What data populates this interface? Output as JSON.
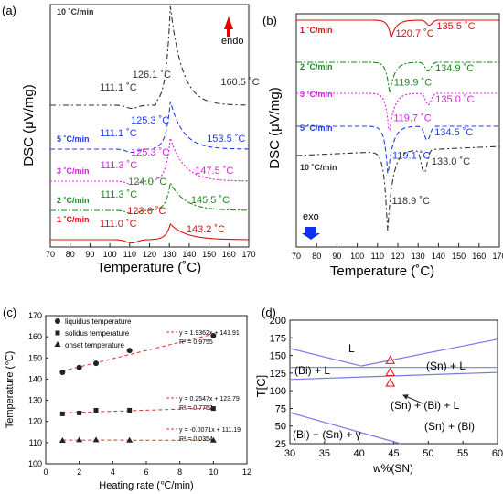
{
  "panels": {
    "a": {
      "letter": "(a)",
      "ylabel": "DSC (μV/mg)",
      "xlabel": "Temperature (˚C)",
      "xticks": [
        "70",
        "80",
        "90",
        "100",
        "110",
        "120",
        "130",
        "140",
        "150",
        "160",
        "170"
      ],
      "endo_label": "endo",
      "rates": [
        {
          "label": "10 ˚C/min",
          "color": "#333333",
          "ann": [
            "111.1 ˚C",
            "126.1 ˚C",
            "160.5 ˚C"
          ]
        },
        {
          "label": "5 ˚C/min",
          "color": "#1f3fe6",
          "ann": [
            "111.1 ˚C",
            "125.3 ˚C",
            "153.5 ˚C"
          ]
        },
        {
          "label": "3 ˚C/min",
          "color": "#e020e0",
          "ann": [
            "111.3 ˚C",
            "125.3 ˚C",
            "147.5 ˚C"
          ]
        },
        {
          "label": "2 ˚C/min",
          "color": "#1e8a1e",
          "ann": [
            "111.3 ˚C",
            "124.0 ˚C",
            "145.5 ˚C"
          ]
        },
        {
          "label": "1 ˚C/min",
          "color": "#e01010",
          "ann": [
            "111.0 ˚C",
            "123.6 ˚C",
            "143.2 ˚C"
          ]
        }
      ]
    },
    "b": {
      "letter": "(b)",
      "ylabel": "DSC (μV/mg)",
      "xlabel": "Temperature (˚C)",
      "xticks": [
        "70",
        "80",
        "90",
        "100",
        "110",
        "120",
        "130",
        "140",
        "150",
        "160",
        "170"
      ],
      "exo_label": "exo",
      "rates": [
        {
          "label": "1 ˚C/min",
          "color": "#e01010",
          "ann": [
            "120.7 ˚C",
            "135.5 ˚C"
          ]
        },
        {
          "label": "2 ˚C/min",
          "color": "#1e8a1e",
          "ann": [
            "119.9 ˚C",
            "134.9 ˚C"
          ]
        },
        {
          "label": "3 ˚C/min",
          "color": "#e020e0",
          "ann": [
            "119.7 ˚C",
            "135.0 ˚C"
          ]
        },
        {
          "label": "5 ˚C/min",
          "color": "#1f3fe6",
          "ann": [
            "119.1 ˚C",
            "134.5 ˚C"
          ]
        },
        {
          "label": "10 ˚C/min",
          "color": "#333333",
          "ann": [
            "118.9 ˚C",
            "133.0 ˚C"
          ]
        }
      ]
    },
    "c": {
      "letter": "(c)",
      "ylabel": "Temperature (℃)",
      "xlabel": "Heating rate (℃/min)",
      "legend": [
        "liquidus temperature",
        "solidus  temperature",
        "onset  temperature"
      ],
      "fits": [
        {
          "eq": "y = 1.9362x + 141.91",
          "r2": "R² = 0.9755"
        },
        {
          "eq": "y = 0.2547x + 123.79",
          "r2": "R² = 0.7752"
        },
        {
          "eq": "y = -0.0071x + 111.19",
          "r2": "R² = 0.0354"
        }
      ],
      "xticks": [
        "0",
        "2",
        "4",
        "6",
        "8",
        "10",
        "12"
      ],
      "yticks": [
        "100",
        "110",
        "120",
        "130",
        "140",
        "150",
        "160",
        "170"
      ]
    },
    "d": {
      "letter": "(d)",
      "ylabel": "T[C]",
      "xlabel": "w%(SN)",
      "regions": [
        "L",
        "(Bi) + L",
        "(Sn) + L",
        "(Sn) + (Bi) + L",
        "(Sn) + (Bi)",
        "(Bi) + (Sn) + γ"
      ],
      "xticks": [
        "30",
        "35",
        "40",
        "45",
        "50",
        "55",
        "60"
      ],
      "yticks": [
        "25",
        "50",
        "75",
        "100",
        "125",
        "150",
        "175",
        "200"
      ]
    }
  },
  "chart_data": [
    {
      "type": "line",
      "title": "",
      "xlabel": "Temperature (˚C)",
      "ylabel": "DSC (μV/mg)",
      "xlim": [
        70,
        170
      ],
      "series": [
        {
          "name": "10 ˚C/min",
          "peaks": [
            111.1,
            126.1,
            160.5
          ]
        },
        {
          "name": "5 ˚C/min",
          "peaks": [
            111.1,
            125.3,
            153.5
          ]
        },
        {
          "name": "3 ˚C/min",
          "peaks": [
            111.3,
            125.3,
            147.5
          ]
        },
        {
          "name": "2 ˚C/min",
          "peaks": [
            111.3,
            124.0,
            145.5
          ]
        },
        {
          "name": "1 ˚C/min",
          "peaks": [
            111.0,
            123.6,
            143.2
          ]
        }
      ]
    },
    {
      "type": "line",
      "title": "",
      "xlabel": "Temperature (˚C)",
      "ylabel": "DSC (μV/mg)",
      "xlim": [
        70,
        170
      ],
      "series": [
        {
          "name": "1 ˚C/min",
          "peaks": [
            120.7,
            135.5
          ]
        },
        {
          "name": "2 ˚C/min",
          "peaks": [
            119.9,
            134.9
          ]
        },
        {
          "name": "3 ˚C/min",
          "peaks": [
            119.7,
            135.0
          ]
        },
        {
          "name": "5 ˚C/min",
          "peaks": [
            119.1,
            134.5
          ]
        },
        {
          "name": "10 ˚C/min",
          "peaks": [
            118.9,
            133.0
          ]
        }
      ]
    },
    {
      "type": "scatter",
      "title": "",
      "xlabel": "Heating rate (℃/min)",
      "ylabel": "Temperature (℃)",
      "xlim": [
        0,
        12
      ],
      "ylim": [
        100,
        170
      ],
      "x": [
        1,
        2,
        3,
        5,
        10
      ],
      "series": [
        {
          "name": "liquidus temperature",
          "values": [
            143.2,
            145.5,
            147.5,
            153.5,
            160.5
          ],
          "fit": [
            1.9362,
            141.91
          ]
        },
        {
          "name": "solidus  temperature",
          "values": [
            123.6,
            124.0,
            125.3,
            125.3,
            126.1
          ],
          "fit": [
            0.2547,
            123.79
          ]
        },
        {
          "name": "onset  temperature",
          "values": [
            111.0,
            111.3,
            111.3,
            111.1,
            111.1
          ],
          "fit": [
            -0.0071,
            111.19
          ]
        }
      ]
    },
    {
      "type": "line",
      "title": "",
      "xlabel": "w%(SN)",
      "ylabel": "T[C]",
      "xlim": [
        30,
        60
      ],
      "ylim": [
        25,
        200
      ],
      "series": [
        {
          "x": [
            30,
            40.3
          ],
          "values": [
            160,
            135
          ]
        },
        {
          "x": [
            40.3,
            60
          ],
          "values": [
            135,
            173
          ]
        },
        {
          "x": [
            30,
            60
          ],
          "values": [
            133,
            133
          ]
        },
        {
          "x": [
            30,
            60
          ],
          "values": [
            116,
            126
          ]
        },
        {
          "x": [
            30,
            46
          ],
          "values": [
            69,
            25
          ]
        }
      ],
      "markers": {
        "x": [
          44.5,
          44.5,
          44.5
        ],
        "values": [
          143.2,
          126.1,
          111.1
        ]
      }
    }
  ]
}
